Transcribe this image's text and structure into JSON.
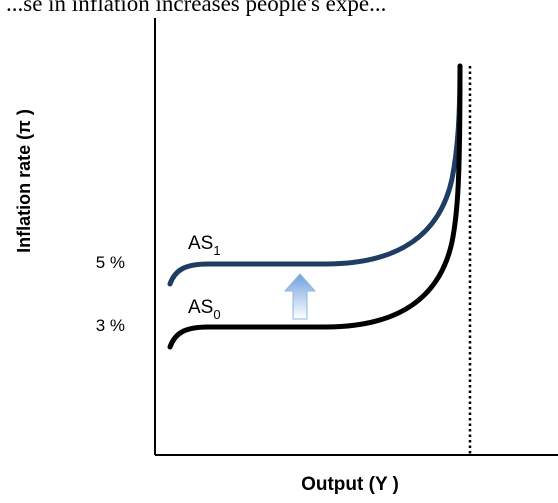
{
  "header_text": "...se in inflation increases people's expe...",
  "chart_data": {
    "type": "line",
    "title": "",
    "ylabel": "Inflation rate (π )",
    "xlabel": "Output (Y )",
    "yticks": [
      {
        "label": "5 %",
        "value": 5
      },
      {
        "label": "3 %",
        "value": 3
      }
    ],
    "series": [
      {
        "name": "AS",
        "subscript": "1",
        "level": 5,
        "color": "#1f3d63"
      },
      {
        "name": "AS",
        "subscript": "0",
        "level": 3,
        "color": "#000000"
      }
    ],
    "potential_output_line": {
      "style": "dotted",
      "color": "#000000"
    },
    "shift_arrow": {
      "direction": "up",
      "from_level": 3,
      "to_level": 5,
      "color": "#a9c8ec"
    },
    "grid": false
  }
}
